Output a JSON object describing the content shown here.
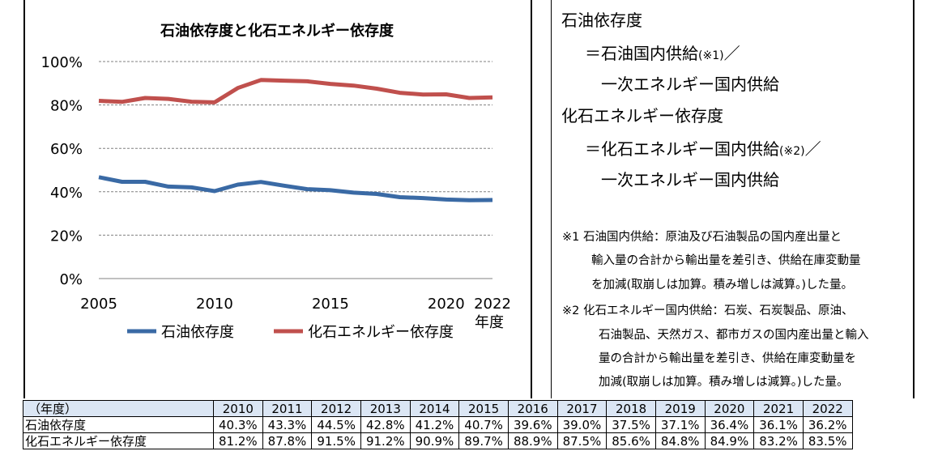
{
  "chart_data": {
    "type": "line",
    "title": "石油依存度と化石エネルギー依存度",
    "x": [
      2005,
      2006,
      2007,
      2008,
      2009,
      2010,
      2011,
      2012,
      2013,
      2014,
      2015,
      2016,
      2017,
      2018,
      2019,
      2020,
      2021,
      2022
    ],
    "series": [
      {
        "name": "石油依存度",
        "color": "#3a6aa5",
        "values": [
          46.7,
          44.6,
          44.6,
          42.4,
          42.0,
          40.3,
          43.3,
          44.5,
          42.8,
          41.2,
          40.7,
          39.6,
          39.0,
          37.5,
          37.1,
          36.4,
          36.1,
          36.2
        ]
      },
      {
        "name": "化石エネルギー依存度",
        "color": "#c0504d",
        "values": [
          81.9,
          81.4,
          83.2,
          82.8,
          81.5,
          81.2,
          87.8,
          91.5,
          91.2,
          90.9,
          89.7,
          88.9,
          87.5,
          85.6,
          84.8,
          84.9,
          83.2,
          83.5
        ]
      }
    ],
    "xticks": [
      "2005",
      "2010",
      "2015",
      "2020",
      "2022"
    ],
    "xticks_values": [
      2005,
      2010,
      2015,
      2020,
      2022
    ],
    "xlabel": "年度",
    "yticks": [
      "0%",
      "20%",
      "40%",
      "60%",
      "80%",
      "100%"
    ],
    "yticks_values": [
      0,
      20,
      40,
      60,
      80,
      100
    ],
    "ylim": [
      0,
      100
    ],
    "xlim": [
      2005,
      2022
    ],
    "grid": "horizontal-dashed",
    "legend_position": "bottom"
  },
  "definitions": {
    "oil_title": "石油依存度",
    "oil_eq_line1": "＝石油国内供給",
    "oil_eq_note": "(※1)",
    "oil_eq_slash": "／",
    "oil_eq_line2": "一次エネルギー国内供給",
    "fossil_title": "化石エネルギー依存度",
    "fossil_eq_line1": "＝化石エネルギー国内供給",
    "fossil_eq_note": "(※2)",
    "fossil_eq_slash": "／",
    "fossil_eq_line2": "一次エネルギー国内供給"
  },
  "notes": {
    "n1_line1": "※1  石油国内供給：原油及び石油製品の国内産出量と",
    "n1_line2": "輸入量の合計から輸出量を差引き、供給在庫変動量",
    "n1_line3": "を加減(取崩しは加算。積み増しは減算。)した量。",
    "n2_line1": "※2  化石エネルギー国内供給：石炭、石炭製品、原油、",
    "n2_line2": "石油製品、天然ガス、都市ガスの国内産出量と輸入",
    "n2_line3": "量の合計から輸出量を差引き、供給在庫変動量を",
    "n2_line4": "加減(取崩しは加算。積み増しは減算。)した量。"
  },
  "table": {
    "header_label": "（年度）",
    "years": [
      "2010",
      "2011",
      "2012",
      "2013",
      "2014",
      "2015",
      "2016",
      "2017",
      "2018",
      "2019",
      "2020",
      "2021",
      "2022"
    ],
    "rows": [
      {
        "label": "石油依存度",
        "cells": [
          "40.3%",
          "43.3%",
          "44.5%",
          "42.8%",
          "41.2%",
          "40.7%",
          "39.6%",
          "39.0%",
          "37.5%",
          "37.1%",
          "36.4%",
          "36.1%",
          "36.2%"
        ]
      },
      {
        "label": "化石エネルギー依存度",
        "cells": [
          "81.2%",
          "87.8%",
          "91.5%",
          "91.2%",
          "90.9%",
          "89.7%",
          "88.9%",
          "87.5%",
          "85.6%",
          "84.8%",
          "84.9%",
          "83.2%",
          "83.5%"
        ]
      }
    ]
  }
}
